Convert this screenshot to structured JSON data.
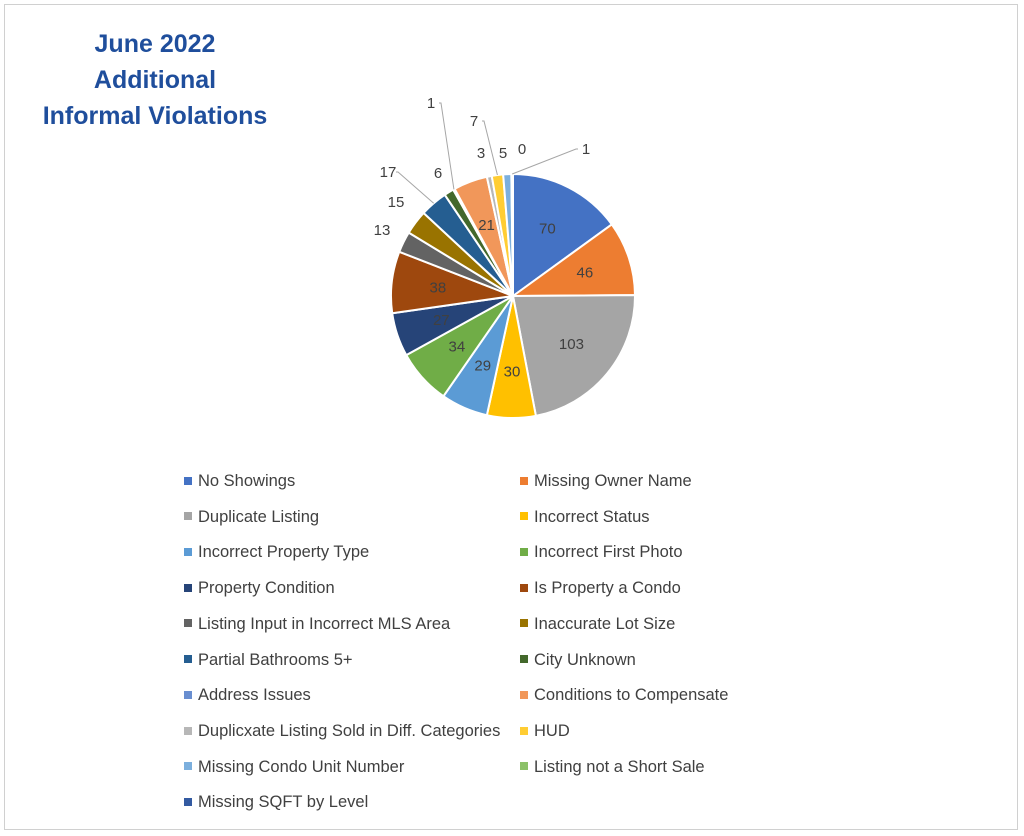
{
  "title_lines": [
    "June 2022",
    "Additional",
    "Informal Violations"
  ],
  "chart_data": {
    "type": "pie",
    "title": "June 2022 Additional Informal Violations",
    "legend_position": "bottom",
    "slices": [
      {
        "label": "No Showings",
        "value": 70,
        "color": "#4472c4"
      },
      {
        "label": "Missing Owner Name",
        "value": 46,
        "color": "#ed7d31"
      },
      {
        "label": "Duplicate Listing",
        "value": 103,
        "color": "#a5a5a5"
      },
      {
        "label": "Incorrect Status",
        "value": 30,
        "color": "#ffc000"
      },
      {
        "label": "Incorrect Property Type",
        "value": 29,
        "color": "#5b9bd5"
      },
      {
        "label": "Incorrect First Photo",
        "value": 34,
        "color": "#70ad47"
      },
      {
        "label": "Property Condition",
        "value": 27,
        "color": "#264478"
      },
      {
        "label": "Is Property a Condo",
        "value": 38,
        "color": "#9e480e"
      },
      {
        "label": "Listing Input in Incorrect MLS Area",
        "value": 13,
        "color": "#636363"
      },
      {
        "label": "Inaccurate Lot Size",
        "value": 15,
        "color": "#997300"
      },
      {
        "label": "Partial Bathrooms 5+",
        "value": 17,
        "color": "#255e91"
      },
      {
        "label": "City Unknown",
        "value": 6,
        "color": "#43682b"
      },
      {
        "label": "Address Issues",
        "value": 1,
        "color": "#698ed0"
      },
      {
        "label": "Conditions to Compensate",
        "value": 21,
        "color": "#f1975a"
      },
      {
        "label": "Duplicxate Listing Sold in Diff. Categories",
        "value": 3,
        "color": "#b7b7b7"
      },
      {
        "label": "HUD",
        "value": 7,
        "color": "#ffcd33"
      },
      {
        "label": "Missing Condo Unit Number",
        "value": 5,
        "color": "#7cafdd"
      },
      {
        "label": "Listing not a Short Sale",
        "value": 0,
        "color": "#8cc168"
      },
      {
        "label": "Missing SQFT by Level",
        "value": 1,
        "color": "#335aa1"
      }
    ]
  }
}
